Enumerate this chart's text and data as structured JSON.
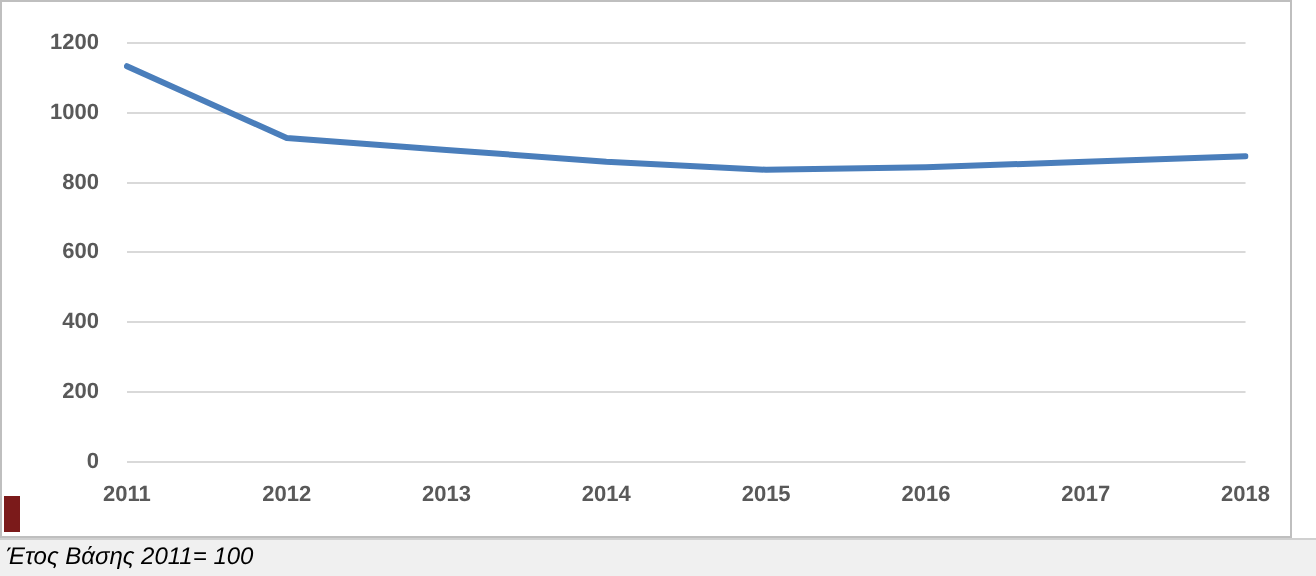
{
  "chart_data": {
    "type": "line",
    "categories": [
      "2011",
      "2012",
      "2013",
      "2014",
      "2015",
      "2016",
      "2017",
      "2018"
    ],
    "series": [
      {
        "color": "#4a7ebb",
        "values": [
          1134,
          928,
          894,
          860,
          837,
          844,
          860,
          876
        ]
      }
    ],
    "ylim": [
      0,
      1200
    ],
    "yticks": [
      0,
      200,
      400,
      600,
      800,
      1000,
      1200
    ],
    "grid": "y",
    "legend": false,
    "marker": "none",
    "line_style": "solid",
    "annotations": [
      "Έτος Βάσης 2011= 100"
    ]
  }
}
